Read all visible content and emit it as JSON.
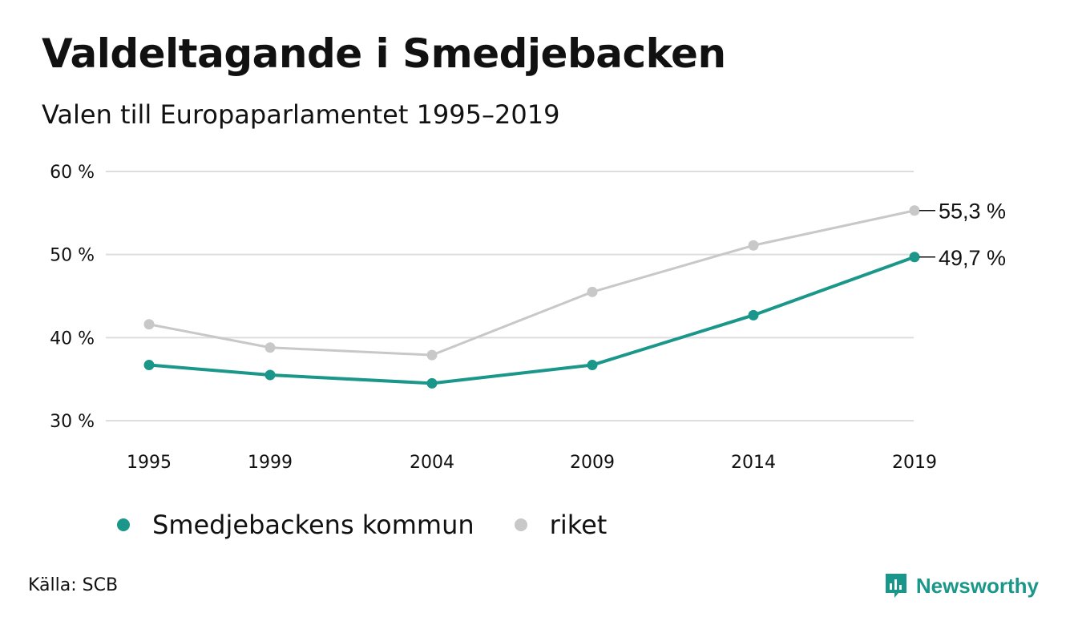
{
  "title": "Valdeltagande i Smedjebacken",
  "subtitle": "Valen till Europaparlamentet 1995–2019",
  "source": "Källa: SCB",
  "brand": "Newsworthy",
  "colors": {
    "primary": "#1a978a",
    "secondary": "#c8c8c8",
    "grid": "#dddddd",
    "text": "#111111"
  },
  "chart_data": {
    "type": "line",
    "title": "Valdeltagande i Smedjebacken",
    "subtitle": "Valen till Europaparlamentet 1995–2019",
    "categories": [
      "1995",
      "1999",
      "2004",
      "2009",
      "2014",
      "2019"
    ],
    "x": [
      1995,
      1999,
      2004,
      2009,
      2014,
      2019
    ],
    "ylim": [
      30,
      60
    ],
    "yticks": [
      30,
      40,
      50,
      60
    ],
    "ytick_labels": [
      "30 %",
      "40 %",
      "50 %",
      "60 %"
    ],
    "grid": true,
    "legend_position": "bottom-left",
    "series": [
      {
        "name": "riket",
        "color": "#c8c8c8",
        "values": [
          41.6,
          38.8,
          37.9,
          45.5,
          51.1,
          55.3
        ],
        "end_label": "55,3 %"
      },
      {
        "name": "Smedjebackens kommun",
        "color": "#1a978a",
        "values": [
          36.7,
          35.5,
          34.5,
          36.7,
          42.7,
          49.7
        ],
        "end_label": "49,7 %"
      }
    ]
  }
}
